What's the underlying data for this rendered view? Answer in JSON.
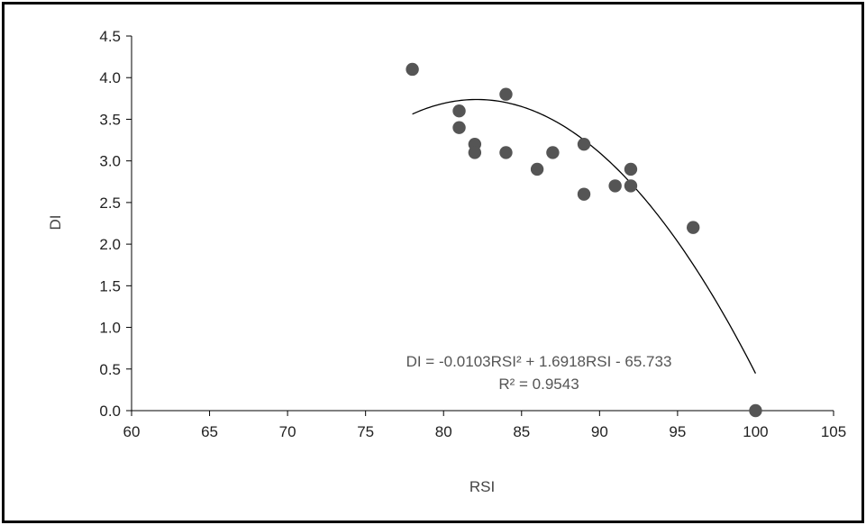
{
  "chart_data": {
    "type": "scatter",
    "xlabel": "RSI",
    "ylabel": "DI",
    "xlim": [
      60,
      105
    ],
    "ylim": [
      0,
      4.5
    ],
    "x_ticks": [
      "60",
      "65",
      "70",
      "75",
      "80",
      "85",
      "90",
      "95",
      "100",
      "105"
    ],
    "y_ticks": [
      "0.0",
      "0.5",
      "1.0",
      "1.5",
      "2.0",
      "2.5",
      "3.0",
      "3.5",
      "4.0",
      "4.5"
    ],
    "grid": false,
    "legend": "none",
    "marker_color": "#555555",
    "series": [
      {
        "points": [
          {
            "x": 78,
            "y": 4.1
          },
          {
            "x": 81,
            "y": 3.6
          },
          {
            "x": 81,
            "y": 3.4
          },
          {
            "x": 82,
            "y": 3.2
          },
          {
            "x": 82,
            "y": 3.1
          },
          {
            "x": 84,
            "y": 3.8
          },
          {
            "x": 84,
            "y": 3.1
          },
          {
            "x": 86,
            "y": 2.9
          },
          {
            "x": 87,
            "y": 3.1
          },
          {
            "x": 89,
            "y": 3.2
          },
          {
            "x": 89,
            "y": 2.6
          },
          {
            "x": 91,
            "y": 2.7
          },
          {
            "x": 92,
            "y": 2.9
          },
          {
            "x": 92,
            "y": 2.7
          },
          {
            "x": 96,
            "y": 2.2
          },
          {
            "x": 100,
            "y": 0.0
          }
        ]
      }
    ],
    "trendline": {
      "type": "polynomial",
      "coefficients": [
        -0.0103,
        1.6918,
        -65.733
      ],
      "x_range": [
        78,
        100
      ],
      "color": "#000000"
    },
    "annotations": {
      "equation": "DI = -0.0103RSI² + 1.6918RSI - 65.733",
      "r_squared": "R² = 0.9543"
    }
  }
}
